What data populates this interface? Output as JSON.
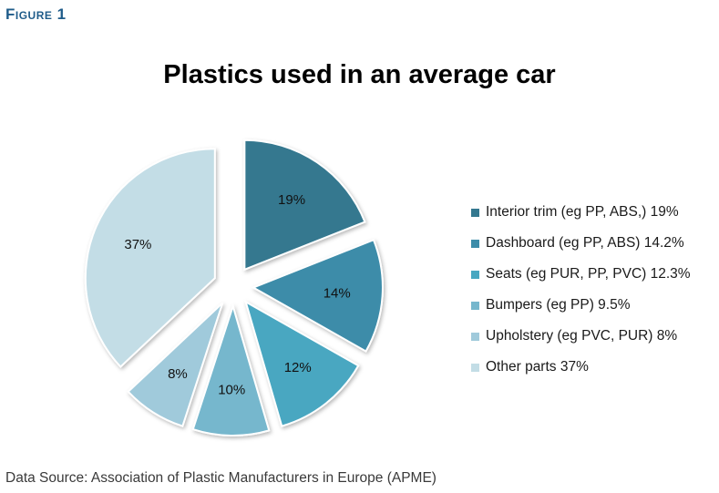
{
  "figure_label": "Figure 1",
  "source": "Data Source: Association of Plastic Manufacturers in Europe (APME)",
  "chart_data": {
    "type": "pie",
    "title": "Plastics used in an average car",
    "exploded": true,
    "legend_position": "right",
    "slices": [
      {
        "legend": "Interior trim (eg PP, ABS,) 19%",
        "value": 19,
        "label": "19%",
        "color": "#34788f"
      },
      {
        "legend": "Dashboard (eg PP, ABS) 14.2%",
        "value": 14.2,
        "label": "14%",
        "color": "#3c8ca9"
      },
      {
        "legend": "Seats (eg PUR, PP, PVC) 12.3%",
        "value": 12.3,
        "label": "12%",
        "color": "#48a7c1"
      },
      {
        "legend": "Bumpers (eg PP) 9.5%",
        "value": 9.5,
        "label": "10%",
        "color": "#76b7cd"
      },
      {
        "legend": "Upholstery (eg PVC, PUR) 8%",
        "value": 8,
        "label": "8%",
        "color": "#a0cadb"
      },
      {
        "legend": "Other parts 37%",
        "value": 37,
        "label": "37%",
        "color": "#c3dde6"
      }
    ]
  }
}
